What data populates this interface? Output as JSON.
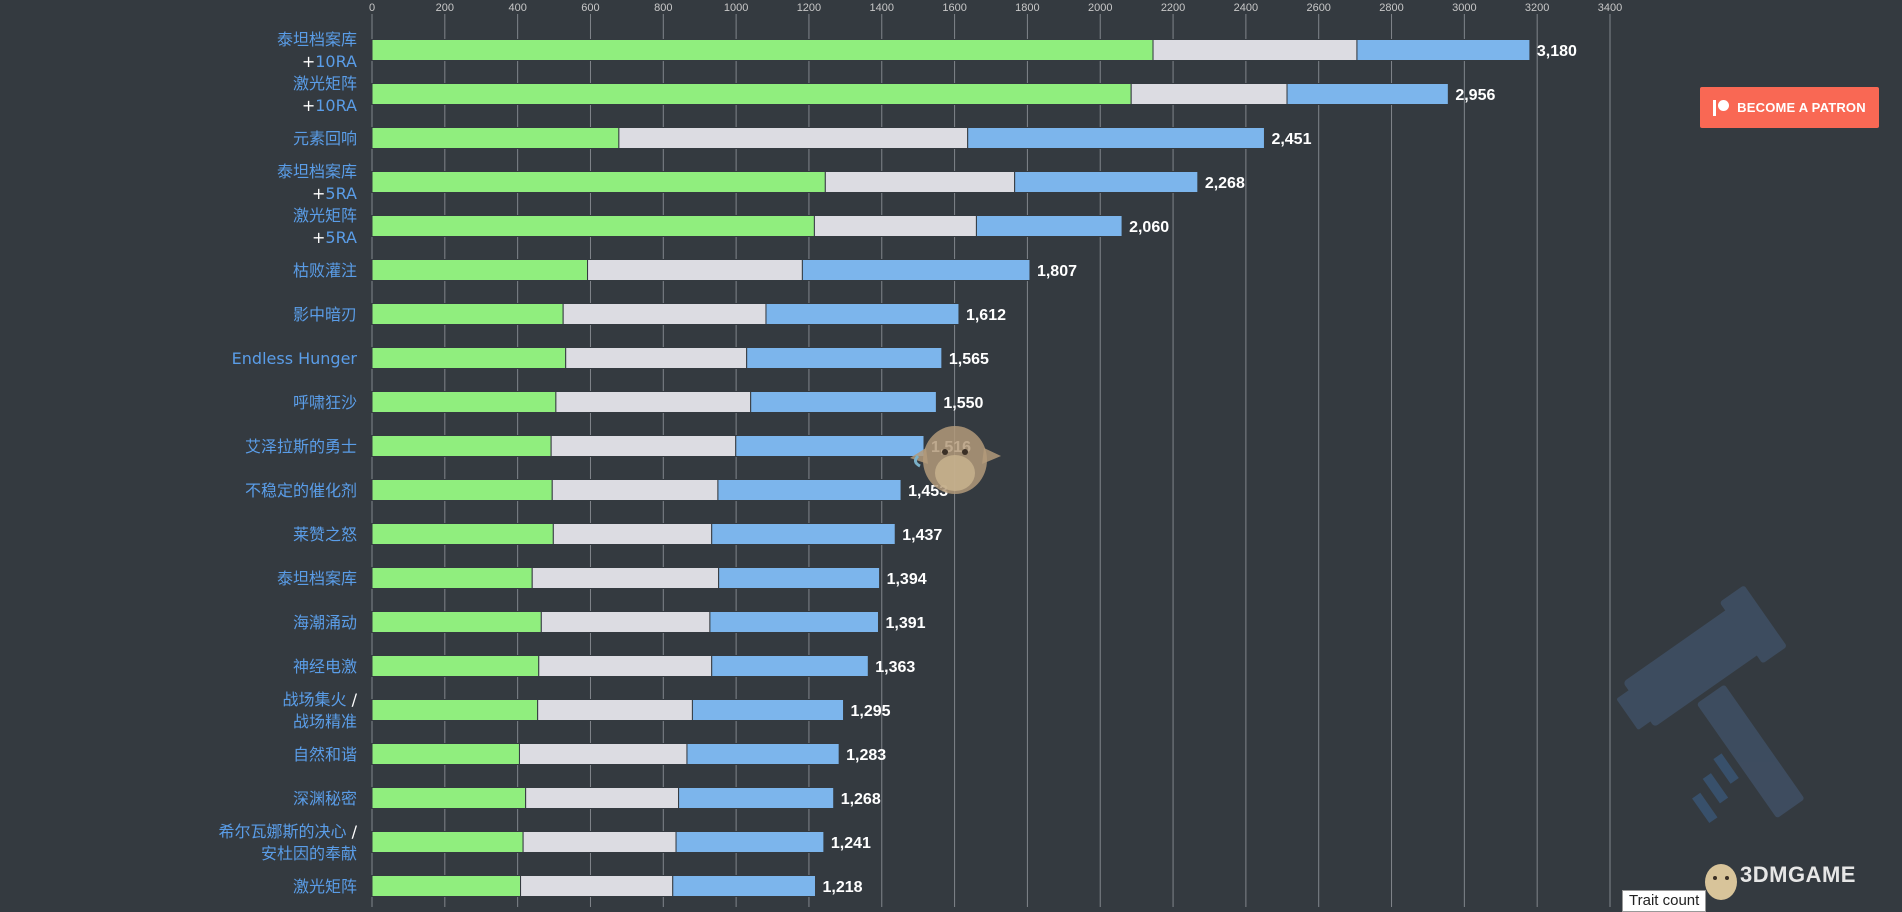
{
  "chart_data": {
    "type": "bar",
    "stacked": true,
    "orientation": "horizontal",
    "title": "",
    "xlabel": "",
    "ylabel": "",
    "xlim": [
      0,
      3400
    ],
    "x_ticks": [
      0,
      200,
      400,
      600,
      800,
      1000,
      1200,
      1400,
      1600,
      1800,
      2000,
      2200,
      2400,
      2600,
      2800,
      3000,
      3200,
      3400
    ],
    "grid": true,
    "categories": [
      "泰坦档案库 +10RA",
      "激光矩阵 +10RA",
      "元素回响",
      "泰坦档案库 +5RA",
      "激光矩阵 +5RA",
      "枯败灌注",
      "影中暗刃",
      "Endless Hunger",
      "呼啸狂沙",
      "艾泽拉斯的勇士",
      "不稳定的催化剂",
      "莱赞之怒",
      "泰坦档案库",
      "海潮涌动",
      "神经电激",
      "战场集火 / 战场精准",
      "自然和谐",
      "深渊秘密",
      "希尔瓦娜斯的决心 / 安杜因的奉献",
      "激光矩阵"
    ],
    "category_lines": [
      [
        "泰坦档案库",
        "+10RA"
      ],
      [
        "激光矩阵",
        "+10RA"
      ],
      [
        "元素回响"
      ],
      [
        "泰坦档案库",
        "+5RA"
      ],
      [
        "激光矩阵",
        "+5RA"
      ],
      [
        "枯败灌注"
      ],
      [
        "影中暗刃"
      ],
      [
        "Endless Hunger"
      ],
      [
        "呼啸狂沙"
      ],
      [
        "艾泽拉斯的勇士"
      ],
      [
        "不稳定的催化剂"
      ],
      [
        "莱赞之怒"
      ],
      [
        "泰坦档案库"
      ],
      [
        "海潮涌动"
      ],
      [
        "神经电激"
      ],
      [
        "战场集火 /",
        "战场精准"
      ],
      [
        "自然和谐"
      ],
      [
        "深渊秘密"
      ],
      [
        "希尔瓦娜斯的决心 /",
        "安杜因的奉献"
      ],
      [
        "激光矩阵"
      ]
    ],
    "series": [
      {
        "values": [
          2145,
          2085,
          678,
          1245,
          1215,
          592,
          525,
          532,
          505,
          492,
          495,
          498,
          440,
          465,
          458,
          455,
          405,
          422,
          415,
          408
        ],
        "color": "#90ee7e"
      },
      {
        "values": [
          560,
          428,
          958,
          520,
          445,
          590,
          557,
          497,
          535,
          507,
          455,
          435,
          512,
          463,
          475,
          425,
          460,
          420,
          420,
          418
        ],
        "color": "#dcdce2"
      },
      {
        "values": [
          475,
          443,
          815,
          503,
          400,
          625,
          530,
          536,
          510,
          517,
          503,
          504,
          442,
          463,
          430,
          415,
          418,
          426,
          406,
          392
        ],
        "color": "#7cb5ec"
      }
    ],
    "totals": [
      3180,
      2956,
      2451,
      2268,
      2060,
      1807,
      1612,
      1565,
      1550,
      1516,
      1453,
      1437,
      1394,
      1391,
      1363,
      1295,
      1283,
      1268,
      1241,
      1218
    ],
    "total_labels": [
      "3,180",
      "2,956",
      "2,451",
      "2,268",
      "2,060",
      "1,807",
      "1,612",
      "1,565",
      "1,550",
      "1,516",
      "1,453",
      "1,437",
      "1,394",
      "1,391",
      "1,363",
      "1,295",
      "1,283",
      "1,268",
      "1,241",
      "1,218"
    ]
  },
  "patreon": {
    "label": "BECOME A PATRON"
  },
  "legend_button": {
    "label": "Trait count"
  },
  "watermark": {
    "text": "3DMGAME"
  },
  "colors": {
    "background": "#343a40",
    "grid": "#9a9ea4",
    "category_text": "#5a9de8",
    "value_text": "#ffffff",
    "tick_text": "#c8c8c8",
    "patron": "#f96854"
  }
}
